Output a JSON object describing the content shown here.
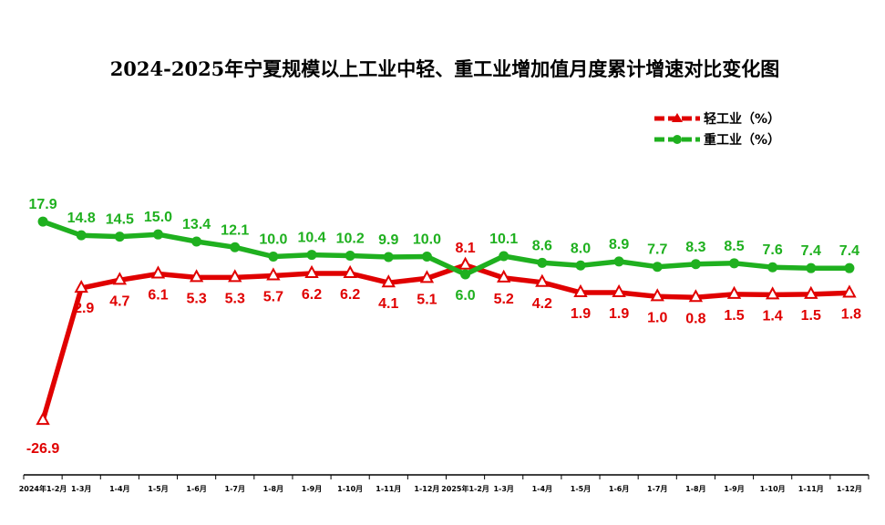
{
  "chart_data": {
    "type": "line",
    "title": "2024-2025年宁夏规模以上工业中轻、重工业增加值月度累计增速对比变化图",
    "categories": [
      "2024年1-2月",
      "1-3月",
      "1-4月",
      "1-5月",
      "1-6月",
      "1-7月",
      "1-8月",
      "1-9月",
      "1-10月",
      "1-11月",
      "1-12月",
      "2025年1-2月",
      "1-3月",
      "1-4月",
      "1-5月",
      "1-6月",
      "1-7月",
      "1-8月",
      "1-9月",
      "1-10月",
      "1-11月",
      "1-12月"
    ],
    "series": [
      {
        "name": "轻工业（%）",
        "color": "#e00000",
        "marker": "triangle",
        "values": [
          -26.9,
          2.9,
          4.7,
          6.1,
          5.3,
          5.3,
          5.7,
          6.2,
          6.2,
          4.1,
          5.1,
          8.1,
          5.2,
          4.2,
          1.9,
          1.9,
          1.0,
          0.8,
          1.5,
          1.4,
          1.5,
          1.8
        ],
        "labels": [
          "-26.9",
          "2.9",
          "4.7",
          "6.1",
          "5.3",
          "5.3",
          "5.7",
          "6.2",
          "6.2",
          "4.1",
          "5.1",
          "8.1",
          "5.2",
          "4.2",
          "1.9",
          "1.9",
          "1.0",
          "0.8",
          "1.5",
          "1.4",
          "1.5",
          "1.8"
        ]
      },
      {
        "name": "重工业（%）",
        "color": "#1fb01f",
        "marker": "circle",
        "values": [
          17.9,
          14.8,
          14.5,
          15.0,
          13.4,
          12.1,
          10.0,
          10.4,
          10.2,
          9.9,
          10.0,
          6.0,
          10.1,
          8.6,
          8.0,
          8.9,
          7.7,
          8.3,
          8.5,
          7.6,
          7.4,
          7.4
        ],
        "labels": [
          "17.9",
          "14.8",
          "14.5",
          "15.0",
          "13.4",
          "12.1",
          "10.0",
          "10.4",
          "10.2",
          "9.9",
          "10.0",
          "6.0",
          "10.1",
          "8.6",
          "8.0",
          "8.9",
          "7.7",
          "8.3",
          "8.5",
          "7.6",
          "7.4",
          "7.4"
        ]
      }
    ],
    "legend": "top-right",
    "grid": false
  }
}
